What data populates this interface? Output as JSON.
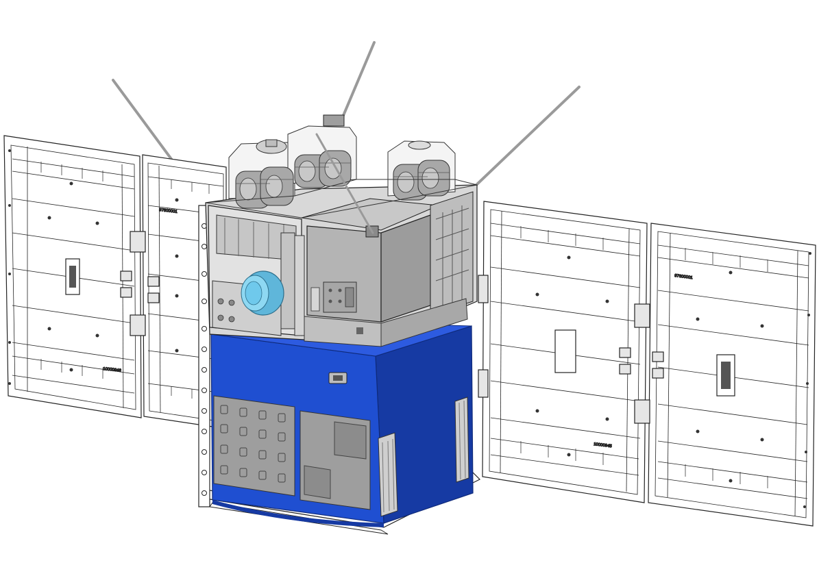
{
  "panel_labels": {
    "left_top": "97600001",
    "left_bottom": "10000946",
    "right_top": "97600001",
    "right_bottom": "10000945"
  },
  "colors": {
    "outline": "#222222",
    "structure_gray": "#b4b4b4",
    "structure_dark": "#8e8e8e",
    "structure_light": "#d8d8d8",
    "bus_blue": "#1f4fd1",
    "bus_blue_dark": "#163aa3",
    "bus_blue_light": "#2d5be0",
    "lens_cyan": "#6fc9ec",
    "antenna": "#9a9a9a",
    "panel_fill": "#ffffff"
  }
}
